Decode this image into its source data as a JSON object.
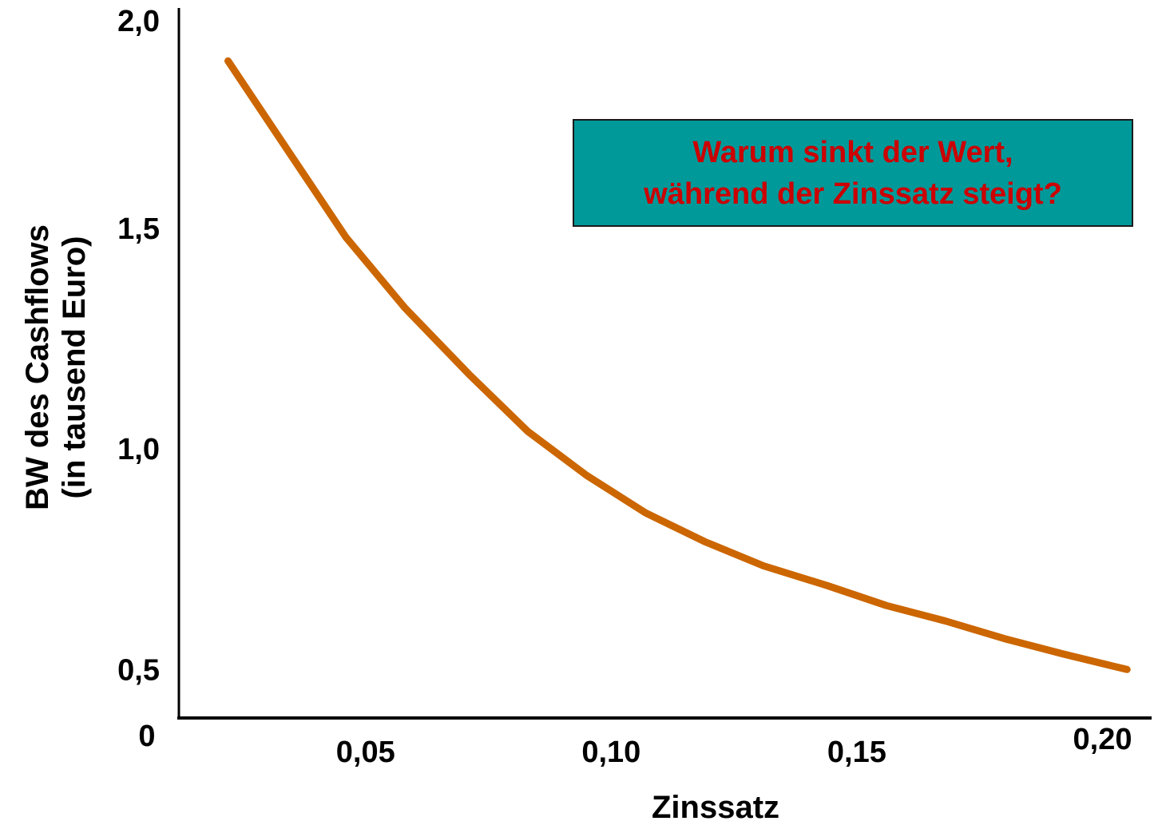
{
  "chart_data": {
    "type": "line",
    "xlabel": "Zinssatz",
    "ylabel_lines": [
      "BW des Cashflows",
      "(in tausend Euro)"
    ],
    "origin_label": "0",
    "x_ticks": [
      {
        "value": 0.05,
        "label": "0,05"
      },
      {
        "value": 0.1,
        "label": "0,10"
      },
      {
        "value": 0.15,
        "label": "0,15"
      },
      {
        "value": 0.2,
        "label": "0,20"
      }
    ],
    "y_ticks": [
      {
        "value": 0.5,
        "label": "0,5"
      },
      {
        "value": 1.0,
        "label": "1,0"
      },
      {
        "value": 1.5,
        "label": "1,5"
      },
      {
        "value": 2.0,
        "label": "2,0"
      }
    ],
    "xlim": [
      0.012,
      0.21
    ],
    "ylim": [
      0.39,
      2.0
    ],
    "series": [
      {
        "color": "#cc6600",
        "x": [
          0.022,
          0.034,
          0.046,
          0.058,
          0.071,
          0.083,
          0.095,
          0.107,
          0.119,
          0.131,
          0.144,
          0.156,
          0.168,
          0.18,
          0.192,
          0.205
        ],
        "y": [
          1.88,
          1.68,
          1.48,
          1.32,
          1.17,
          1.04,
          0.94,
          0.855,
          0.79,
          0.735,
          0.69,
          0.645,
          0.61,
          0.57,
          0.535,
          0.5
        ]
      }
    ],
    "grid": false,
    "annotation": {
      "lines": [
        "Warum sinkt der Wert,",
        "während der Zinssatz steigt?"
      ],
      "background": "#009999",
      "text_color": "#cc0000"
    }
  }
}
